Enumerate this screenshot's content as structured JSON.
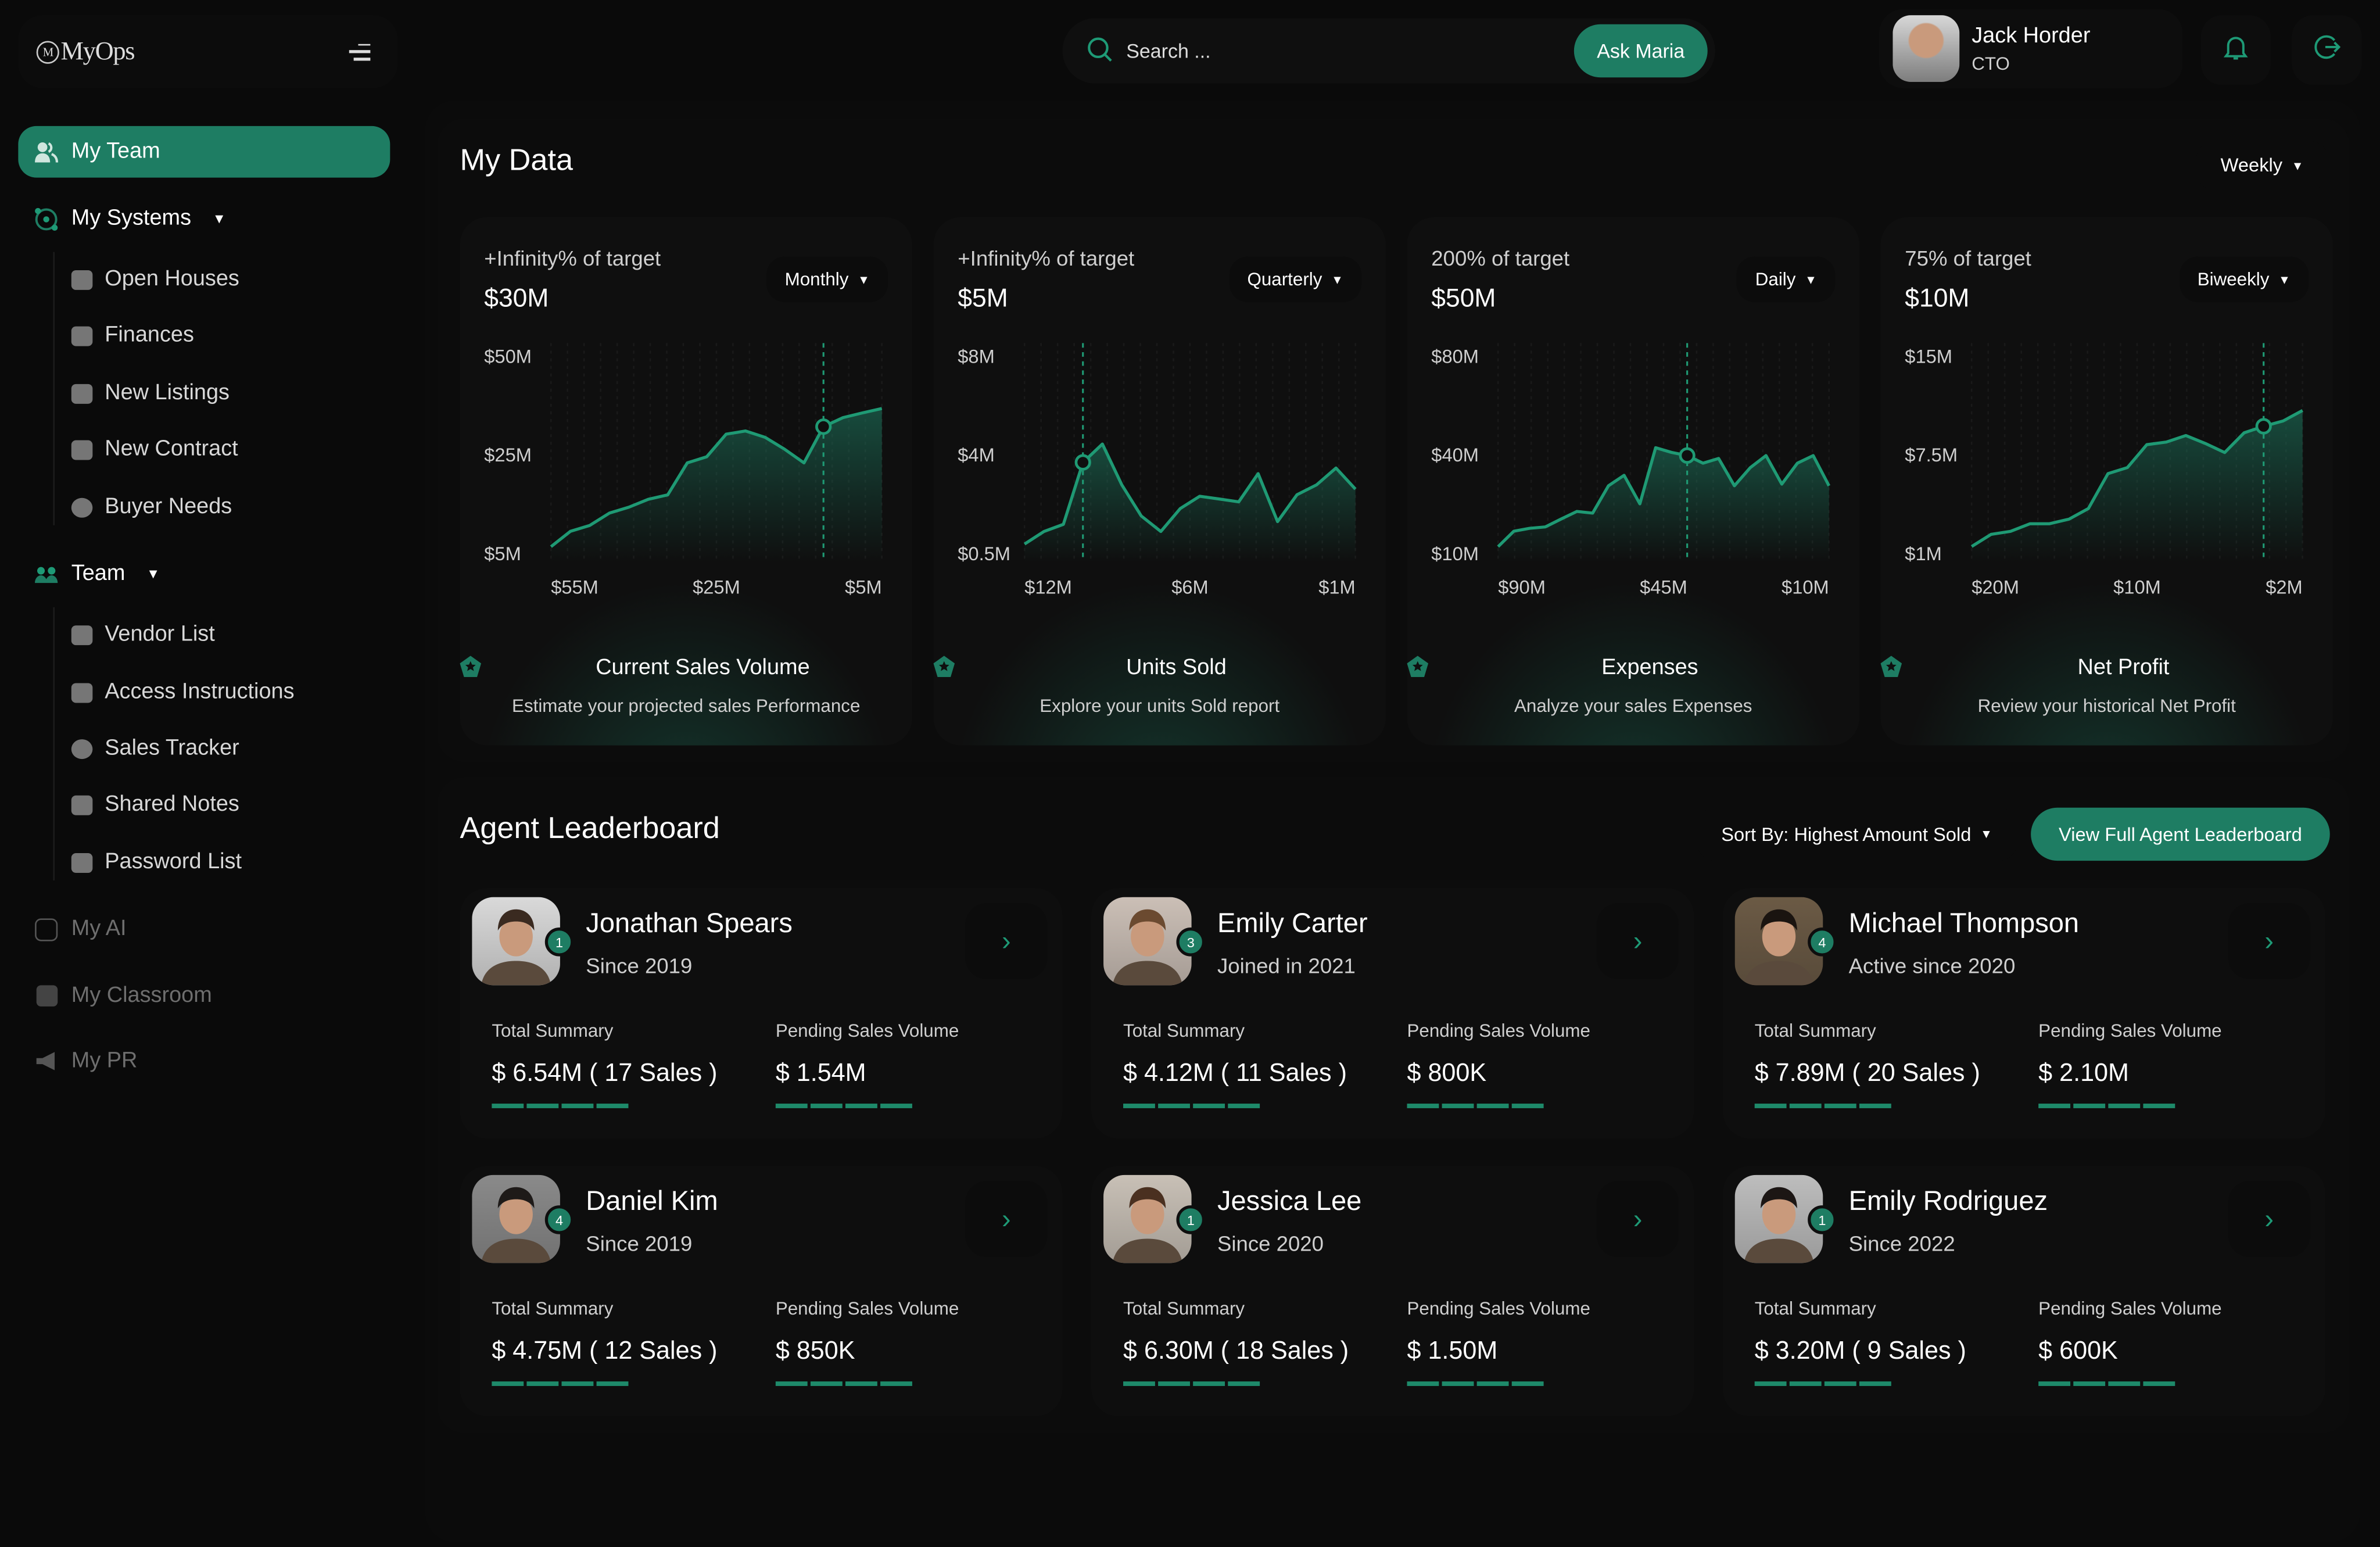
{
  "app": {
    "logo_text": "MyOps",
    "logo_mark": "M"
  },
  "sidebar": {
    "items": [
      {
        "label": "My Team",
        "icon": "users-icon",
        "active": true
      },
      {
        "label": "My Systems",
        "icon": "orbit-icon",
        "expandable": true,
        "children": [
          {
            "label": "Open Houses",
            "icon": "house-icon"
          },
          {
            "label": "Finances",
            "icon": "coins-icon"
          },
          {
            "label": "New Listings",
            "icon": "checklist-icon"
          },
          {
            "label": "New Contract",
            "icon": "contract-icon"
          },
          {
            "label": "Buyer Needs",
            "icon": "bulb-icon"
          }
        ]
      },
      {
        "label": "Team",
        "icon": "team-icon",
        "expandable": true,
        "children": [
          {
            "label": "Vendor List",
            "icon": "vendor-icon"
          },
          {
            "label": "Access Instructions",
            "icon": "access-icon"
          },
          {
            "label": "Sales Tracker",
            "icon": "tracker-icon"
          },
          {
            "label": "Shared Notes",
            "icon": "notes-icon"
          },
          {
            "label": "Password List",
            "icon": "lock-icon"
          }
        ]
      },
      {
        "label": "My AI",
        "icon": "ai-icon",
        "disabled": true
      },
      {
        "label": "My Classroom",
        "icon": "classroom-icon",
        "disabled": true
      },
      {
        "label": "My PR",
        "icon": "megaphone-icon",
        "disabled": true
      }
    ]
  },
  "header": {
    "search_placeholder": "Search ...",
    "ask_button": "Ask Maria",
    "user": {
      "name": "Jack Horder",
      "role": "CTO"
    }
  },
  "my_data": {
    "title": "My Data",
    "period": "Weekly"
  },
  "colors": {
    "accent": "#1e7d63",
    "line": "#1f9a74",
    "background": "#0a0a0a",
    "card": "#0f0f0f"
  },
  "chart_data": [
    {
      "type": "area",
      "target_text": "+Infinity% of target",
      "amount": "$30M",
      "period": "Monthly",
      "title": "Current Sales Volume",
      "subtitle": "Estimate your projected sales Performance",
      "y_ticks": [
        "$50M",
        "$25M",
        "$5M"
      ],
      "y_tick_values": [
        50,
        25,
        5
      ],
      "x_ticks": [
        "$55M",
        "$25M",
        "$5M"
      ],
      "values": [
        6.2,
        9.3,
        10.5,
        13,
        14.2,
        15.8,
        16.7,
        23.2,
        24.4,
        30,
        30.8,
        29.2,
        26.2,
        23.2,
        31.9,
        34.2,
        35.4,
        36.5
      ],
      "highlight_index": 14
    },
    {
      "type": "area",
      "target_text": "+Infinity% of target",
      "amount": "$5M",
      "period": "Quarterly",
      "title": "Units Sold",
      "subtitle": "Explore your units Sold report",
      "y_ticks": [
        "$8M",
        "$4M",
        "$0.5M"
      ],
      "y_tick_values": [
        8,
        4,
        0.5
      ],
      "x_ticks": [
        "$12M",
        "$6M",
        "$1M"
      ],
      "values": [
        0.8,
        1.25,
        1.5,
        3.7,
        4.4,
        2.9,
        1.8,
        1.25,
        2.06,
        2.5,
        2.4,
        2.3,
        3.3,
        1.6,
        2.55,
        2.9,
        3.5,
        2.75
      ],
      "highlight_index": 3
    },
    {
      "type": "area",
      "target_text": "200% of target",
      "amount": "$50M",
      "period": "Daily",
      "title": "Expenses",
      "subtitle": "Analyze your sales Expenses",
      "y_ticks": [
        "$80M",
        "$40M",
        "$10M"
      ],
      "y_tick_values": [
        80,
        40,
        10
      ],
      "x_ticks": [
        "$90M",
        "$45M",
        "$10M"
      ],
      "values": [
        11.8,
        16.5,
        17.4,
        17.8,
        20.2,
        22.5,
        22,
        30.3,
        33.5,
        24.8,
        42.5,
        40.6,
        39.5,
        37.2,
        38.6,
        30.3,
        35.8,
        39.5,
        30.8,
        37.2,
        39.5,
        30.3
      ],
      "highlight_index": 12
    },
    {
      "type": "area",
      "target_text": "75% of target",
      "amount": "$10M",
      "period": "Biweekly",
      "title": "Net Profit",
      "subtitle": "Review your historical Net Profit",
      "y_ticks": [
        "$15M",
        "$7.5M",
        "$1M"
      ],
      "y_tick_values": [
        15,
        7.5,
        1
      ],
      "x_ticks": [
        "$20M",
        "$10M",
        "$2M"
      ],
      "values": [
        1.4,
        2.2,
        2.4,
        2.9,
        2.9,
        3.2,
        3.9,
        6.2,
        6.6,
        8.2,
        8.4,
        8.9,
        8.3,
        7.6,
        9.1,
        9.6,
        10,
        10.8
      ],
      "highlight_index": 15
    }
  ],
  "leaderboard": {
    "title": "Agent Leaderboard",
    "sort_label": "Sort By: Highest Amount Sold",
    "view_button": "View Full Agent Leaderboard",
    "total_label": "Total Summary",
    "pending_label": "Pending Sales Volume",
    "agents": [
      {
        "name": "Jonathan Spears",
        "since": "Since 2019",
        "rank": "1",
        "total": "$ 6.54M ( 17 Sales )",
        "pending": "$ 1.54M"
      },
      {
        "name": "Emily Carter",
        "since": "Joined in 2021",
        "rank": "3",
        "total": "$ 4.12M ( 11 Sales )",
        "pending": "$ 800K"
      },
      {
        "name": "Michael Thompson",
        "since": "Active since 2020",
        "rank": "4",
        "total": "$ 7.89M ( 20 Sales )",
        "pending": "$ 2.10M"
      },
      {
        "name": "Daniel Kim",
        "since": "Since 2019",
        "rank": "4",
        "total": "$ 4.75M ( 12 Sales )",
        "pending": "$ 850K"
      },
      {
        "name": "Jessica Lee",
        "since": "Since 2020",
        "rank": "1",
        "total": "$ 6.30M ( 18 Sales )",
        "pending": "$ 1.50M"
      },
      {
        "name": "Emily Rodriguez",
        "since": "Since 2022",
        "rank": "1",
        "total": "$ 3.20M ( 9 Sales )",
        "pending": "$ 600K"
      }
    ]
  }
}
